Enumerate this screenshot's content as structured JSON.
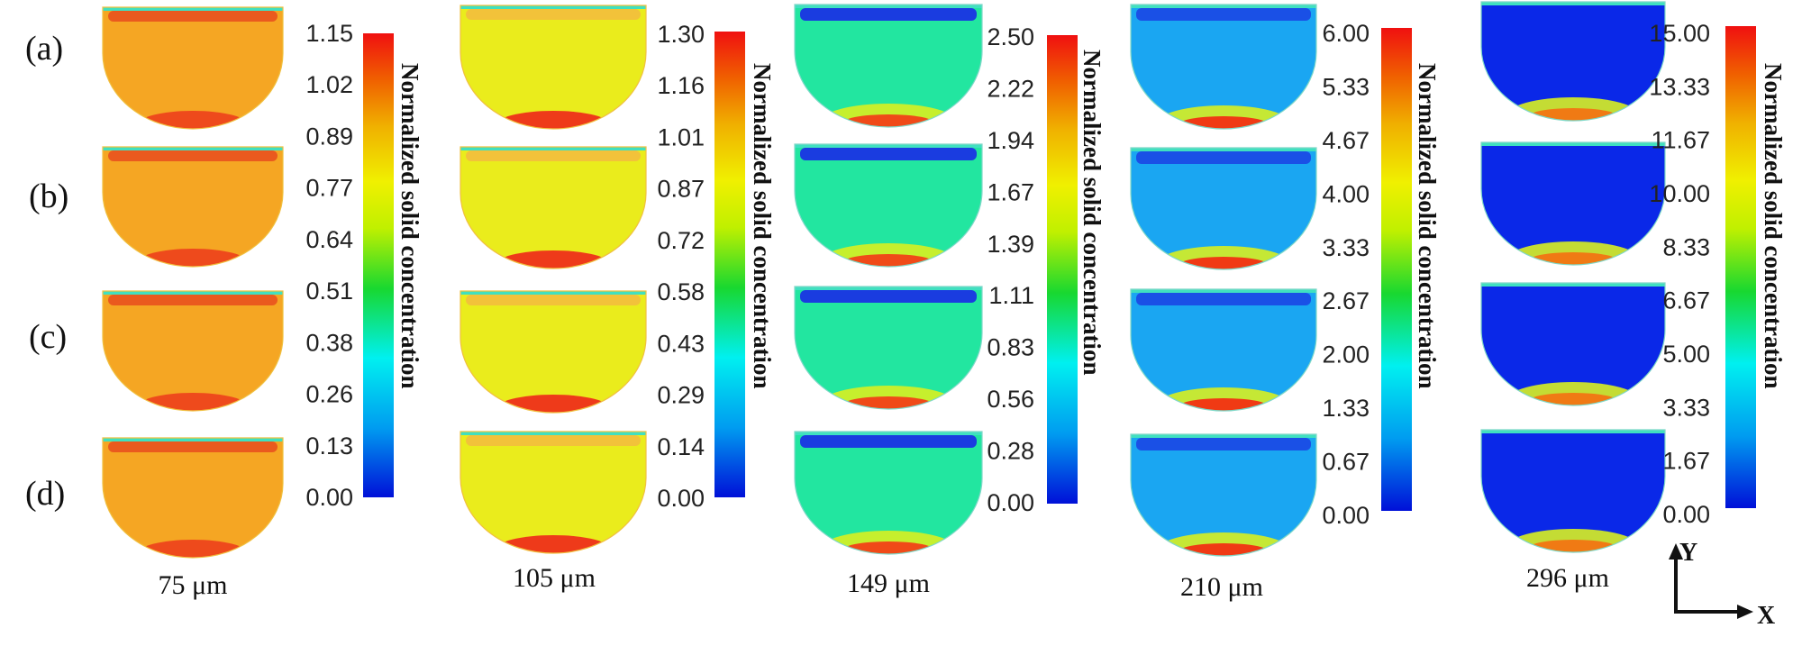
{
  "figure": {
    "row_labels": [
      "(a)",
      "(b)",
      "(c)",
      "(d)"
    ],
    "colorbar_title": "Normalized solid concentration",
    "axes": {
      "x": "X",
      "y": "Y"
    },
    "palette": [
      "#0010d8",
      "#009cf0",
      "#00f0f0",
      "#18d830",
      "#c0f000",
      "#f0f000",
      "#f0b000",
      "#f06000",
      "#f01010"
    ]
  },
  "columns": [
    {
      "particle_size": "75 μm",
      "colorbar_ticks": [
        "1.15",
        "1.02",
        "0.89",
        "0.77",
        "0.64",
        "0.51",
        "0.38",
        "0.26",
        "0.13",
        "0.00"
      ],
      "bulk_color": "#f5a623",
      "top_band_color": "#ea5a1e",
      "bottom_color": "#ee4a1c"
    },
    {
      "particle_size": "105 μm",
      "colorbar_ticks": [
        "1.30",
        "1.16",
        "1.01",
        "0.87",
        "0.72",
        "0.58",
        "0.43",
        "0.29",
        "0.14",
        "0.00"
      ],
      "bulk_color": "#eaec1c",
      "top_band_color": "#f2c23a",
      "bottom_color": "#ee3a1a"
    },
    {
      "particle_size": "149 μm",
      "colorbar_ticks": [
        "2.50",
        "2.22",
        "1.94",
        "1.67",
        "1.39",
        "1.11",
        "0.83",
        "0.56",
        "0.28",
        "0.00"
      ],
      "bulk_color": "#22e6a0",
      "top_band_color": "#1a3ce0",
      "bottom_color": "#f04a18"
    },
    {
      "particle_size": "210 μm",
      "colorbar_ticks": [
        "6.00",
        "5.33",
        "4.67",
        "4.00",
        "3.33",
        "2.67",
        "2.00",
        "1.33",
        "0.67",
        "0.00"
      ],
      "bulk_color": "#1aa6f2",
      "top_band_color": "#1a50e6",
      "bottom_color": "#f03a14"
    },
    {
      "particle_size": "296 μm",
      "colorbar_ticks": [
        "15.00",
        "13.33",
        "11.67",
        "10.00",
        "8.33",
        "6.67",
        "5.00",
        "3.33",
        "1.67",
        "0.00"
      ],
      "bulk_color": "#0a28e8",
      "top_band_color": "#0a28e8",
      "bottom_color": "#f07a14"
    }
  ]
}
